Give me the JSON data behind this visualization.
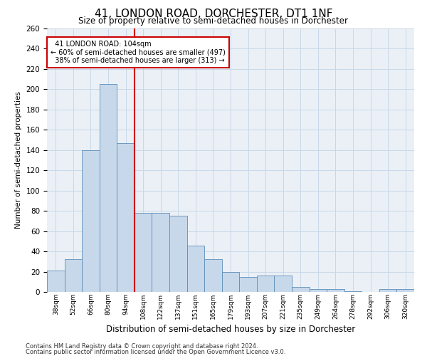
{
  "title": "41, LONDON ROAD, DORCHESTER, DT1 1NF",
  "subtitle": "Size of property relative to semi-detached houses in Dorchester",
  "xlabel": "Distribution of semi-detached houses by size in Dorchester",
  "ylabel": "Number of semi-detached properties",
  "categories": [
    "38sqm",
    "52sqm",
    "66sqm",
    "80sqm",
    "94sqm",
    "108sqm",
    "122sqm",
    "137sqm",
    "151sqm",
    "165sqm",
    "179sqm",
    "193sqm",
    "207sqm",
    "221sqm",
    "235sqm",
    "249sqm",
    "264sqm",
    "278sqm",
    "292sqm",
    "306sqm",
    "320sqm"
  ],
  "values": [
    21,
    32,
    140,
    205,
    147,
    78,
    78,
    75,
    46,
    32,
    20,
    15,
    16,
    16,
    5,
    3,
    3,
    1,
    0,
    3,
    3
  ],
  "bar_color": "#c8d8eb",
  "bar_edge_color": "#5b8db8",
  "vline_color": "#cc0000",
  "annotation_box_color": "#cc0000",
  "property_name": "41 LONDON ROAD",
  "property_size": "104sqm",
  "pct_smaller": 60,
  "pct_smaller_count": 497,
  "pct_larger": 38,
  "pct_larger_count": 313,
  "vline_x_index": 4.5,
  "ylim": [
    0,
    260
  ],
  "yticks": [
    0,
    20,
    40,
    60,
    80,
    100,
    120,
    140,
    160,
    180,
    200,
    220,
    240,
    260
  ],
  "grid_color": "#c8d8e8",
  "background_color": "#eaf0f6",
  "footer_line1": "Contains HM Land Registry data © Crown copyright and database right 2024.",
  "footer_line2": "Contains public sector information licensed under the Open Government Licence v3.0."
}
